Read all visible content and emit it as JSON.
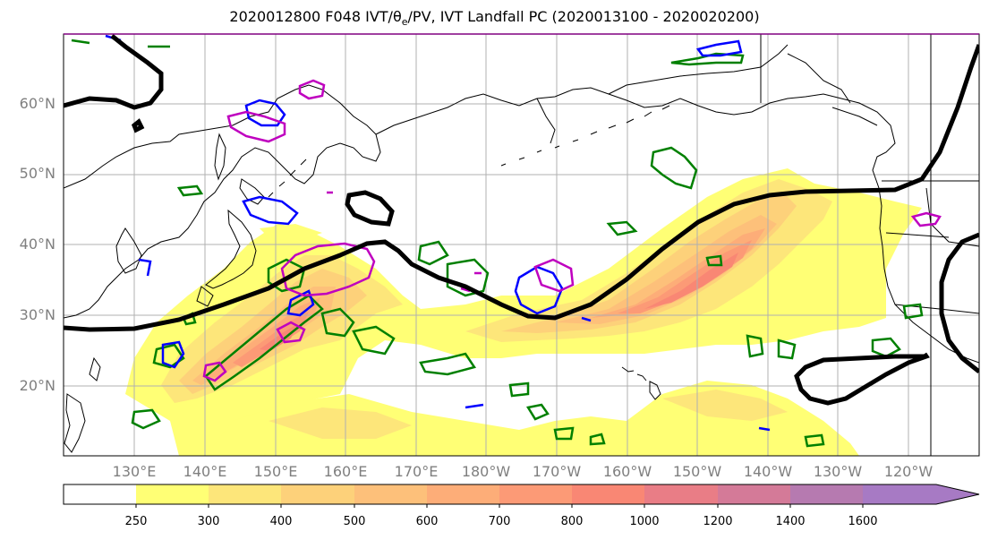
{
  "title": {
    "prefix": "2020012800 F048 IVT/",
    "theta": "θ",
    "theta_sub": "e",
    "suffix": "/PV, IVT Landfall PC (2020013100 - 2020020200)"
  },
  "map": {
    "lat_labels": [
      "60°N",
      "50°N",
      "40°N",
      "30°N",
      "20°N"
    ],
    "lon_labels": [
      "130°E",
      "140°E",
      "150°E",
      "160°E",
      "170°E",
      "180°W",
      "170°W",
      "160°W",
      "150°W",
      "140°W",
      "130°W",
      "120°W"
    ],
    "layers": [
      "ivt-shading",
      "coastlines",
      "theta-e-contours",
      "pv-contours",
      "landfall-pc-contour"
    ],
    "colors": {
      "theta_e_green": "#008000",
      "pv_blue": "#0000ff",
      "pv_magenta": "#bf00bf",
      "landfall_black": "#000000",
      "grid": "#b0b0b0"
    }
  },
  "colorbar": {
    "bounds": [
      "250",
      "300",
      "400",
      "500",
      "600",
      "700",
      "800",
      "1000",
      "1200",
      "1400",
      "1600"
    ],
    "colors": [
      "#ffffff",
      "#ffff75",
      "#fde67a",
      "#fdd17a",
      "#fdc07a",
      "#fdad78",
      "#fc9a76",
      "#f98774",
      "#e97d86",
      "#d47a98",
      "#b67ab0",
      "#a77ac4"
    ],
    "extend": "max"
  }
}
